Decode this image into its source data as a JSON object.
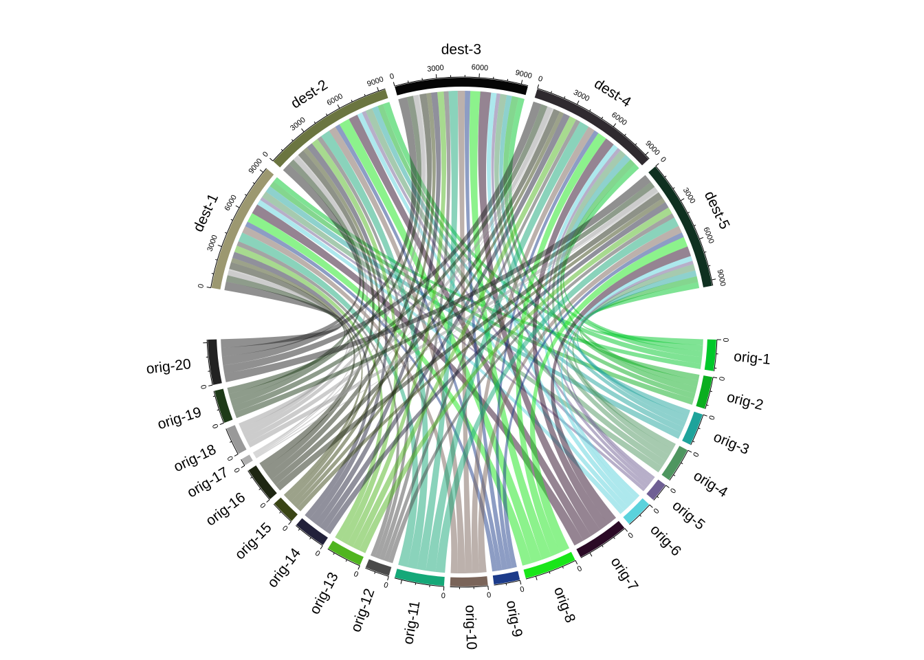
{
  "chart_data": {
    "type": "chord",
    "title": "",
    "dest_tick_labels": [
      "0",
      "3000",
      "6000",
      "9000"
    ],
    "orig_tick_labels": [
      "0"
    ],
    "origins": [
      {
        "name": "orig-1",
        "color": "#00c82a"
      },
      {
        "name": "orig-2",
        "color": "#0aae1f"
      },
      {
        "name": "orig-3",
        "color": "#1ea39b"
      },
      {
        "name": "orig-4",
        "color": "#4e9660"
      },
      {
        "name": "orig-5",
        "color": "#6f5f94"
      },
      {
        "name": "orig-6",
        "color": "#5bd2dc"
      },
      {
        "name": "orig-7",
        "color": "#2b0a26"
      },
      {
        "name": "orig-8",
        "color": "#19e619"
      },
      {
        "name": "orig-9",
        "color": "#1c3b8a"
      },
      {
        "name": "orig-10",
        "color": "#7a6459"
      },
      {
        "name": "orig-11",
        "color": "#15a878"
      },
      {
        "name": "orig-12",
        "color": "#4a4a4a"
      },
      {
        "name": "orig-13",
        "color": "#50b520"
      },
      {
        "name": "orig-14",
        "color": "#22213a"
      },
      {
        "name": "orig-15",
        "color": "#3a4515"
      },
      {
        "name": "orig-16",
        "color": "#1e2612"
      },
      {
        "name": "orig-17",
        "color": "#b0b0b0"
      },
      {
        "name": "orig-18",
        "color": "#999999"
      },
      {
        "name": "orig-19",
        "color": "#1e3a18"
      },
      {
        "name": "orig-20",
        "color": "#222222"
      }
    ],
    "destinations": [
      {
        "name": "dest-1",
        "color": "#9c9870"
      },
      {
        "name": "dest-2",
        "color": "#6b7540"
      },
      {
        "name": "dest-3",
        "color": "#050505"
      },
      {
        "name": "dest-4",
        "color": "#2f2a2f"
      },
      {
        "name": "dest-5",
        "color": "#0f3020"
      }
    ],
    "matrix_rows_origins_cols_destinations": [
      [
        400,
        500,
        450,
        430,
        450
      ],
      [
        450,
        420,
        500,
        480,
        450
      ],
      [
        500,
        450,
        400,
        500,
        450
      ],
      [
        500,
        520,
        480,
        500,
        480
      ],
      [
        250,
        300,
        280,
        270,
        260
      ],
      [
        400,
        380,
        420,
        400,
        380
      ],
      [
        750,
        700,
        800,
        720,
        750
      ],
      [
        720,
        800,
        750,
        700,
        750
      ],
      [
        380,
        360,
        400,
        350,
        370
      ],
      [
        520,
        550,
        540,
        520,
        540
      ],
      [
        700,
        720,
        680,
        730,
        700
      ],
      [
        350,
        340,
        360,
        330,
        360
      ],
      [
        500,
        520,
        480,
        530,
        510
      ],
      [
        460,
        480,
        470,
        490,
        460
      ],
      [
        340,
        360,
        350,
        330,
        360
      ],
      [
        520,
        500,
        510,
        490,
        520
      ],
      [
        100,
        90,
        110,
        100,
        100
      ],
      [
        390,
        400,
        380,
        410,
        400
      ],
      [
        480,
        460,
        470,
        480,
        470
      ],
      [
        650,
        640,
        660,
        620,
        650
      ]
    ],
    "chord_opacity": 0.5
  }
}
